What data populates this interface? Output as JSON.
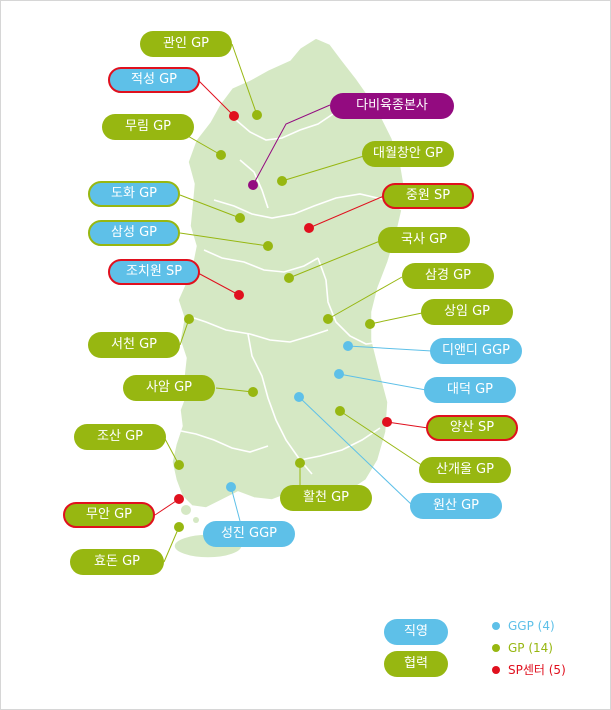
{
  "colors": {
    "ggp": "#5ec0e8",
    "gp": "#97b711",
    "sp": "#e0101e",
    "hq": "#930b80",
    "land": "#d5e8c4",
    "border": "#ffffff"
  },
  "labels": {
    "gwanin": "관인 GP",
    "jeokseong": "적성 GP",
    "dabiyuk": "다비육종본사",
    "murim": "무림 GP",
    "daewol": "대월창안 GP",
    "dohwa": "도화 GP",
    "jungwon": "중원 SP",
    "samseong": "삼성 GP",
    "guksa": "국사 GP",
    "jochiwon": "조치원 SP",
    "samgyeong": "삼경 GP",
    "sangim": "상임 GP",
    "seocheon": "서천 GP",
    "diandi": "디앤디 GGP",
    "saam": "사암 GP",
    "daedeok": "대덕 GP",
    "yangsan": "양산 SP",
    "josan": "조산 GP",
    "sangaeul": "산개울 GP",
    "hwalcheon": "활천 GP",
    "wonsan": "원산 GP",
    "muan": "무안 GP",
    "seongjin": "성진 GGP",
    "hyodon": "효돈 GP"
  },
  "legend": {
    "direct": "직영",
    "partner": "협력",
    "ggp": "GGP (4)",
    "gp": "GP (14)",
    "sp": "SP센터 (5)"
  }
}
